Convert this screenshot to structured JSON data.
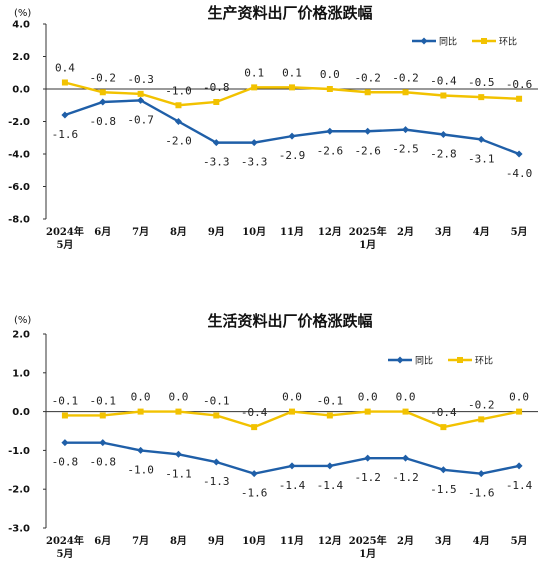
{
  "colors": {
    "yoy": "#1f5fa8",
    "mom": "#f2c200"
  },
  "chart_data": [
    {
      "type": "line",
      "title": "生产资料出厂价格涨跌幅",
      "unit": "(%)",
      "categories": [
        [
          "2024年",
          "5月"
        ],
        [
          "6月"
        ],
        [
          "7月"
        ],
        [
          "8月"
        ],
        [
          "9月"
        ],
        [
          "10月"
        ],
        [
          "11月"
        ],
        [
          "12月"
        ],
        [
          "2025年",
          "1月"
        ],
        [
          "2月"
        ],
        [
          "3月"
        ],
        [
          "4月"
        ],
        [
          "5月"
        ]
      ],
      "ylim": [
        -8.0,
        4.0
      ],
      "yticks": [
        "4.0",
        "2.0",
        "0.0",
        "-2.0",
        "-4.0",
        "-6.0",
        "-8.0"
      ],
      "ytick_values": [
        4.0,
        2.0,
        0.0,
        -2.0,
        -4.0,
        -6.0,
        -8.0
      ],
      "legend": [
        "同比",
        "环比"
      ],
      "legend_position": "top-right",
      "series": [
        {
          "name": "同比",
          "values": [
            -1.6,
            -0.8,
            -0.7,
            -2.0,
            -3.3,
            -3.3,
            -2.9,
            -2.6,
            -2.6,
            -2.5,
            -2.8,
            -3.1,
            -4.0
          ],
          "labels": [
            "-1.6",
            "-0.8",
            "-0.7",
            "-2.0",
            "-3.3",
            "-3.3",
            "-2.9",
            "-2.6",
            "-2.6",
            "-2.5",
            "-2.8",
            "-3.1",
            "-4.0"
          ]
        },
        {
          "name": "环比",
          "values": [
            0.4,
            -0.2,
            -0.3,
            -1.0,
            -0.8,
            0.1,
            0.1,
            0.0,
            -0.2,
            -0.2,
            -0.4,
            -0.5,
            -0.6
          ],
          "labels": [
            "0.4",
            "-0.2",
            "-0.3",
            "-1.0",
            "-0.8",
            "0.1",
            "0.1",
            "0.0",
            "-0.2",
            "-0.2",
            "-0.4",
            "-0.5",
            "-0.6"
          ]
        }
      ]
    },
    {
      "type": "line",
      "title": "生活资料出厂价格涨跌幅",
      "unit": "(%)",
      "categories": [
        [
          "2024年",
          "5月"
        ],
        [
          "6月"
        ],
        [
          "7月"
        ],
        [
          "8月"
        ],
        [
          "9月"
        ],
        [
          "10月"
        ],
        [
          "11月"
        ],
        [
          "12月"
        ],
        [
          "2025年",
          "1月"
        ],
        [
          "2月"
        ],
        [
          "3月"
        ],
        [
          "4月"
        ],
        [
          "5月"
        ]
      ],
      "ylim": [
        -3.0,
        2.0
      ],
      "yticks": [
        "2.0",
        "1.0",
        "0.0",
        "-1.0",
        "-2.0",
        "-3.0"
      ],
      "ytick_values": [
        2.0,
        1.0,
        0.0,
        -1.0,
        -2.0,
        -3.0
      ],
      "legend": [
        "同比",
        "环比"
      ],
      "legend_position": "top-right",
      "series": [
        {
          "name": "同比",
          "values": [
            -0.8,
            -0.8,
            -1.0,
            -1.1,
            -1.3,
            -1.6,
            -1.4,
            -1.4,
            -1.2,
            -1.2,
            -1.5,
            -1.6,
            -1.4
          ],
          "labels": [
            "-0.8",
            "-0.8",
            "-1.0",
            "-1.1",
            "-1.3",
            "-1.6",
            "-1.4",
            "-1.4",
            "-1.2",
            "-1.2",
            "-1.5",
            "-1.6",
            "-1.4"
          ]
        },
        {
          "name": "环比",
          "values": [
            -0.1,
            -0.1,
            0.0,
            0.0,
            -0.1,
            -0.4,
            0.0,
            -0.1,
            0.0,
            0.0,
            -0.4,
            -0.2,
            0.0
          ],
          "labels": [
            "-0.1",
            "-0.1",
            "0.0",
            "0.0",
            "-0.1",
            "-0.4",
            "0.0",
            "-0.1",
            "0.0",
            "0.0",
            "-0.4",
            "-0.2",
            "0.0"
          ]
        }
      ]
    }
  ]
}
